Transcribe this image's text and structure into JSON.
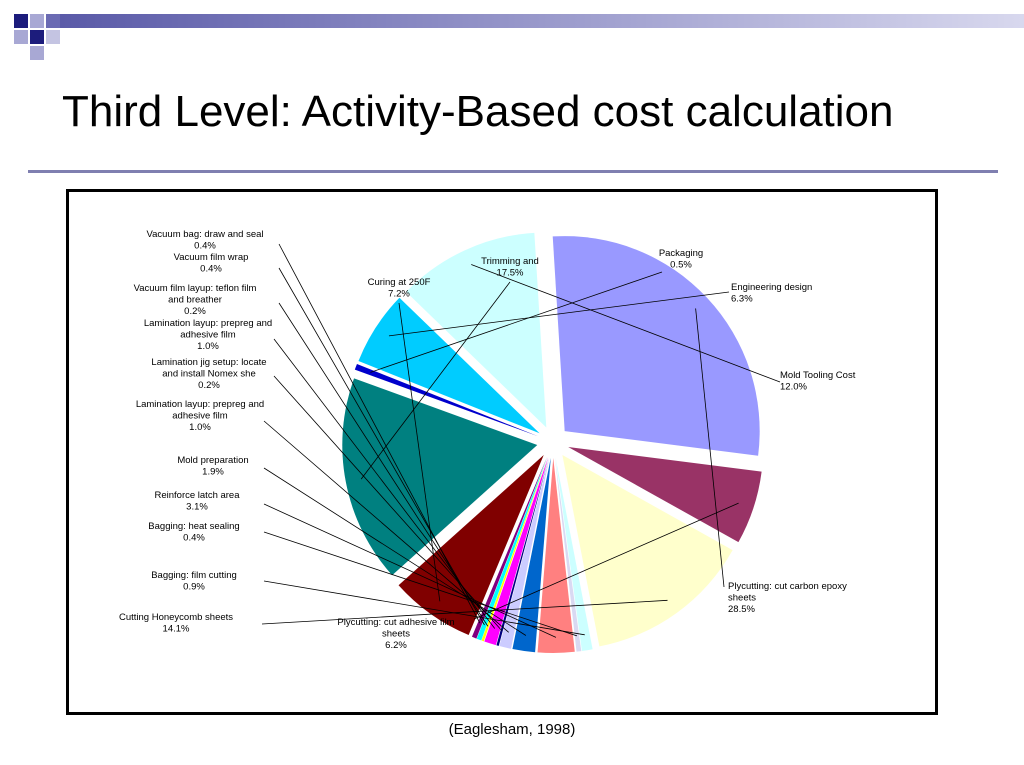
{
  "slide": {
    "title": "Third Level: Activity-Based cost calculation",
    "source": "(Eaglesham, 1998)"
  },
  "colors": {
    "header_bar": "#6b6bb3",
    "rule": "#7f7fb0",
    "deco_navy": "#1c1c7c",
    "deco_light": "#a8a8d4"
  },
  "chart_data": {
    "type": "pie",
    "title": "",
    "exploded": true,
    "slices": [
      {
        "label": "Packaging",
        "value_label": "0.5%",
        "value": 0.5,
        "color": "#0000cc"
      },
      {
        "label": "Engineering design",
        "value_label": "6.3%",
        "value": 6.3,
        "color": "#00ccff"
      },
      {
        "label": "Mold Tooling Cost",
        "value_label": "12.0%",
        "value": 12.0,
        "color": "#ccffff"
      },
      {
        "label": "Plycutting: cut carbon epoxy sheets",
        "value_label": "28.5%",
        "value": 28.5,
        "color": "#9999ff"
      },
      {
        "label": "Plycutting: cut adhesive film sheets",
        "value_label": "6.2%",
        "value": 6.2,
        "color": "#993366"
      },
      {
        "label": "Cutting Honeycomb sheets",
        "value_label": "14.1%",
        "value": 14.1,
        "color": "#ffffcc"
      },
      {
        "label": "Bagging: film cutting",
        "value_label": "0.9%",
        "value": 0.9,
        "color": "#ccffff"
      },
      {
        "label": "Bagging: heat sealing",
        "value_label": "0.4%",
        "value": 0.4,
        "color": "#d9d9f2"
      },
      {
        "label": "Reinforce latch area",
        "value_label": "3.1%",
        "value": 3.1,
        "color": "#ff8080"
      },
      {
        "label": "Mold preparation",
        "value_label": "1.9%",
        "value": 1.9,
        "color": "#0066cc"
      },
      {
        "label": "Lamination layup: prepreg and adhesive film",
        "value_label": "1.0%",
        "value": 1.0,
        "color": "#ccccff"
      },
      {
        "label": "Lamination jig setup: locate and install Nomex she",
        "value_label": "0.2%",
        "value": 0.2,
        "color": "#000080"
      },
      {
        "label": "Lamination layup: prepreg and adhesive film",
        "value_label": "1.0%",
        "value": 1.0,
        "color": "#ff00ff"
      },
      {
        "label": "Vacuum film layup: teflon film and breather",
        "value_label": "0.2%",
        "value": 0.2,
        "color": "#ffff00"
      },
      {
        "label": "Vacuum film wrap",
        "value_label": "0.4%",
        "value": 0.4,
        "color": "#00ffff"
      },
      {
        "label": "Vacuum bag: draw and seal",
        "value_label": "0.4%",
        "value": 0.4,
        "color": "#800080"
      },
      {
        "label": "Curing at 250F",
        "value_label": "7.2%",
        "value": 7.2,
        "color": "#800000"
      },
      {
        "label": "Trimming and",
        "value_label": "17.5%",
        "value": 17.5,
        "color": "#008080"
      }
    ]
  }
}
